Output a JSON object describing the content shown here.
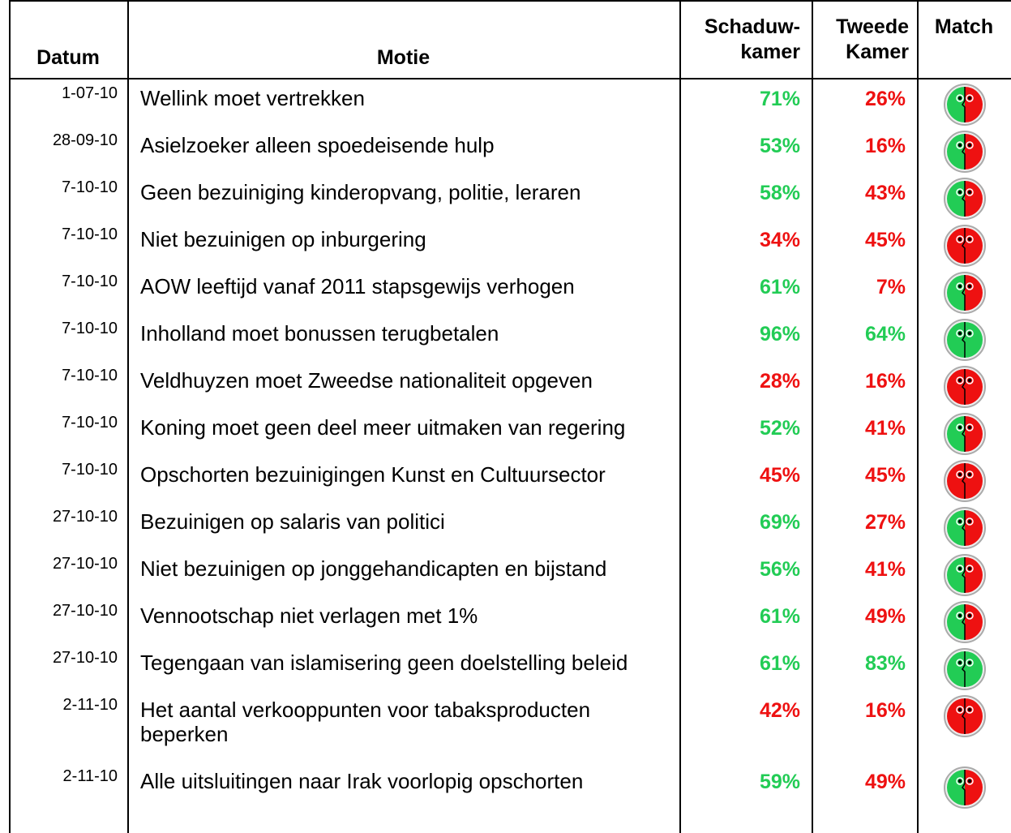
{
  "table": {
    "header": {
      "date": "Datum",
      "motion": "Motie",
      "shadow": [
        "Schaduw-",
        "kamer"
      ],
      "chamber": [
        "Tweede",
        "Kamer"
      ],
      "match": "Match"
    },
    "rows": [
      {
        "date": "1-07-10",
        "motion": "Wellink moet vertrekken",
        "shadow": "71%",
        "shadow_color": "#22cc55",
        "chamber": "26%",
        "chamber_color": "#ee1111"
      },
      {
        "date": "28-09-10",
        "motion": "Asielzoeker alleen spoedeisende hulp",
        "shadow": "53%",
        "shadow_color": "#22cc55",
        "chamber": "16%",
        "chamber_color": "#ee1111"
      },
      {
        "date": "7-10-10",
        "motion": "Geen bezuiniging kinderopvang, politie, leraren",
        "shadow": "58%",
        "shadow_color": "#22cc55",
        "chamber": "43%",
        "chamber_color": "#ee1111"
      },
      {
        "date": "7-10-10",
        "motion": "Niet bezuinigen op inburgering",
        "shadow": "34%",
        "shadow_color": "#ee1111",
        "chamber": "45%",
        "chamber_color": "#ee1111"
      },
      {
        "date": "7-10-10",
        "motion": "AOW leeftijd vanaf 2011 stapsgewijs verhogen",
        "shadow": "61%",
        "shadow_color": "#22cc55",
        "chamber": "7%",
        "chamber_color": "#ee1111"
      },
      {
        "date": "7-10-10",
        "motion": "Inholland moet bonussen terugbetalen",
        "shadow": "96%",
        "shadow_color": "#22cc55",
        "chamber": "64%",
        "chamber_color": "#22cc55"
      },
      {
        "date": "7-10-10",
        "motion": "Veldhuyzen moet Zweedse nationaliteit opgeven",
        "shadow": "28%",
        "shadow_color": "#ee1111",
        "chamber": "16%",
        "chamber_color": "#ee1111"
      },
      {
        "date": "7-10-10",
        "motion": "Koning moet geen deel meer uitmaken van regering",
        "shadow": "52%",
        "shadow_color": "#22cc55",
        "chamber": "41%",
        "chamber_color": "#ee1111"
      },
      {
        "date": "7-10-10",
        "motion": "Opschorten bezuinigingen Kunst en Cultuursector",
        "shadow": "45%",
        "shadow_color": "#ee1111",
        "chamber": "45%",
        "chamber_color": "#ee1111"
      },
      {
        "date": "27-10-10",
        "motion": "Bezuinigen op salaris van politici",
        "shadow": "69%",
        "shadow_color": "#22cc55",
        "chamber": "27%",
        "chamber_color": "#ee1111"
      },
      {
        "date": "27-10-10",
        "motion": "Niet bezuinigen op jonggehandicapten en bijstand",
        "shadow": "56%",
        "shadow_color": "#22cc55",
        "chamber": "41%",
        "chamber_color": "#ee1111"
      },
      {
        "date": "27-10-10",
        "motion": "Vennootschap niet verlagen met 1%",
        "shadow": "61%",
        "shadow_color": "#22cc55",
        "chamber": "49%",
        "chamber_color": "#ee1111"
      },
      {
        "date": "27-10-10",
        "motion": "Tegengaan van islamisering geen doelstelling beleid",
        "shadow": "61%",
        "shadow_color": "#22cc55",
        "chamber": "83%",
        "chamber_color": "#22cc55"
      },
      {
        "date": "2-11-10",
        "motion": "Het aantal verkooppunten voor tabaksproducten beperken",
        "shadow": "42%",
        "shadow_color": "#ee1111",
        "chamber": "16%",
        "chamber_color": "#ee1111"
      },
      {
        "date": "2-11-10",
        "motion": "Alle uitsluitingen naar Irak voorlopig opschorten",
        "shadow": "59%",
        "shadow_color": "#22cc55",
        "chamber": "49%",
        "chamber_color": "#ee1111"
      }
    ]
  }
}
